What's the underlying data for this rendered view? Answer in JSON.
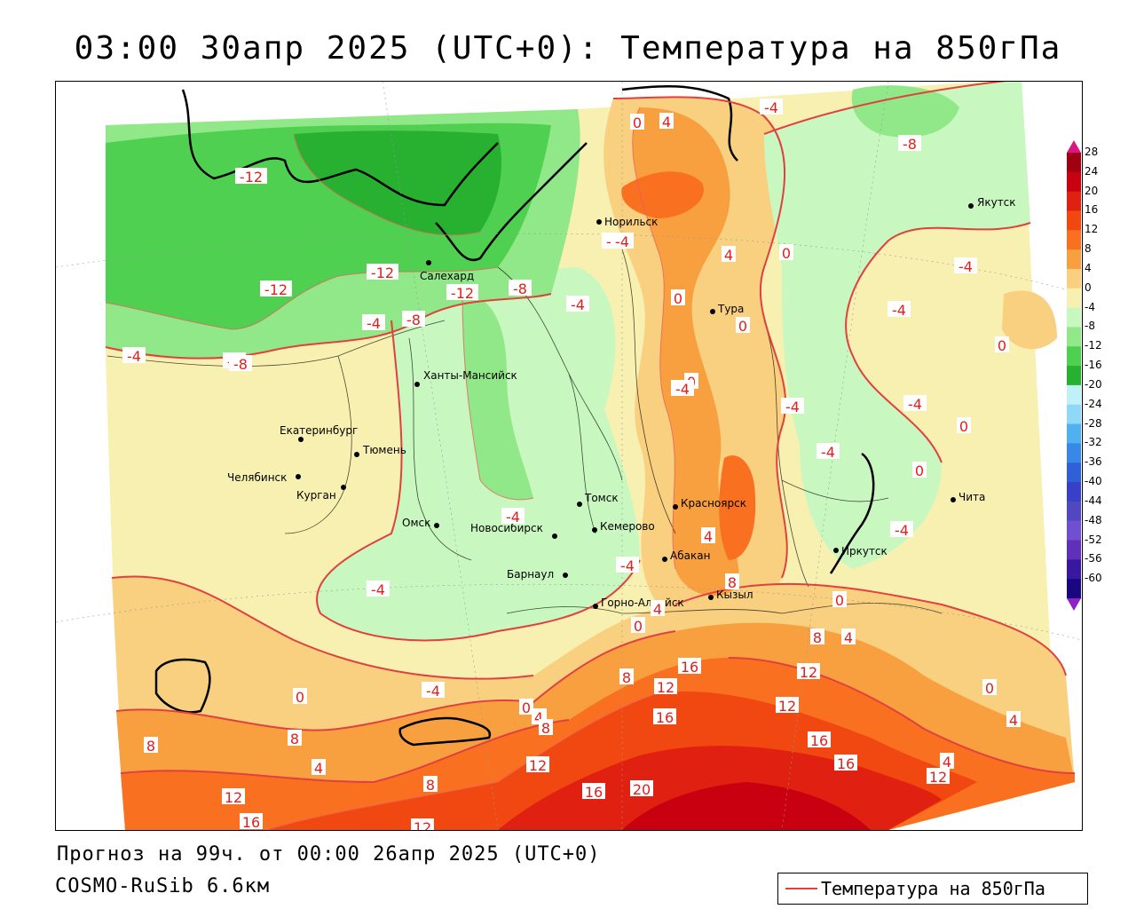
{
  "title": "03:00 30апр 2025 (UTC+0): Температура на 850гПа",
  "forecast_text": "Прогноз на 99ч. от 00:00 26апр 2025 (UTC+0)",
  "model_text": "COSMO-RuSib 6.6км",
  "legend": {
    "label": "Температура на 850гПа",
    "line_color": "#e04040"
  },
  "colorbar": {
    "levels": [
      "28",
      "24",
      "20",
      "16",
      "12",
      "8",
      "4",
      "0",
      "-4",
      "-8",
      "-12",
      "-16",
      "-20",
      "-24",
      "-28",
      "-32",
      "-36",
      "-40",
      "-44",
      "-48",
      "-52",
      "-56",
      "-60"
    ],
    "colors": [
      "#a00010",
      "#c80010",
      "#e02010",
      "#f04810",
      "#f87020",
      "#f8a040",
      "#f8d080",
      "#f8f0b0",
      "#c8f8c0",
      "#90e888",
      "#50d050",
      "#28b030",
      "#c0f0f8",
      "#90d8f8",
      "#50b0f0",
      "#3888e8",
      "#3060d8",
      "#3840c8",
      "#5048c0",
      "#7050d0",
      "#6030b8",
      "#3818a0",
      "#180880"
    ],
    "top_arrow_color": "#d81880",
    "bottom_arrow_color": "#9020c8"
  },
  "cities": [
    {
      "name": "Норильск"
    },
    {
      "name": "Якутск"
    },
    {
      "name": "Салехард"
    },
    {
      "name": "Тура"
    },
    {
      "name": "Ханты-Мансийск"
    },
    {
      "name": "Екатеринбург"
    },
    {
      "name": "Тюмень"
    },
    {
      "name": "Челябинск"
    },
    {
      "name": "Курган"
    },
    {
      "name": "Омск"
    },
    {
      "name": "Томск"
    },
    {
      "name": "Новосибирск"
    },
    {
      "name": "Кемерово"
    },
    {
      "name": "Красноярск"
    },
    {
      "name": "Абакан"
    },
    {
      "name": "Барнаул"
    },
    {
      "name": "Горно-Алтайск"
    },
    {
      "name": "Кызыл"
    },
    {
      "name": "Иркутск"
    },
    {
      "name": "Чита"
    }
  ],
  "isotherm_labels": [
    "-12",
    "-12",
    "-12",
    "-12",
    "-4",
    "-8",
    "-4",
    "-8",
    "-8",
    "-4",
    "0",
    "4",
    "-4",
    "4",
    "0",
    "0",
    "-4",
    "0",
    "-4",
    "-8",
    "-4",
    "0",
    "-4",
    "-4",
    "-4",
    "0",
    "-4",
    "0",
    "-4",
    "0",
    "-4",
    "-4",
    "4",
    "4",
    "-4",
    "8",
    "0",
    "4",
    "8",
    "4",
    "16",
    "12",
    "12",
    "16",
    "12",
    "16",
    "12",
    "16",
    "-4",
    "0",
    "0",
    "4",
    "8",
    "4",
    "8",
    "4",
    "12",
    "16",
    "20",
    "16",
    "12",
    "12",
    "8",
    "8",
    "0",
    "4",
    "0",
    "4",
    "8",
    "12",
    "-8",
    "-8"
  ]
}
